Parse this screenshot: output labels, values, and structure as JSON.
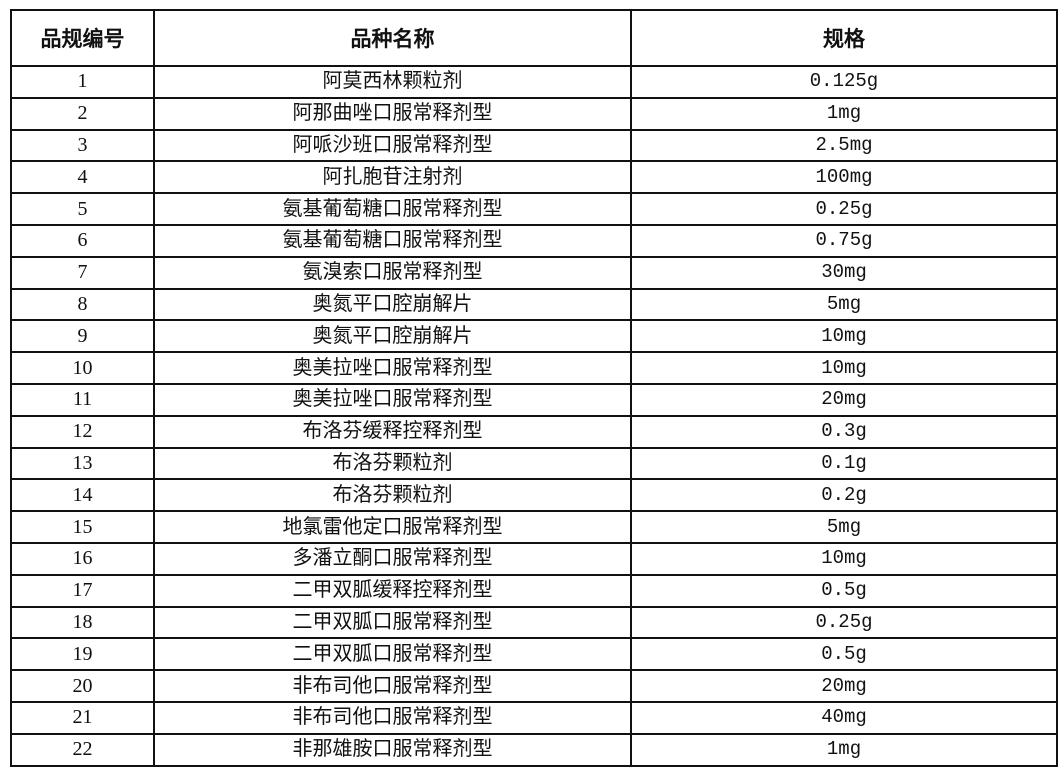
{
  "table": {
    "headers": [
      "品规编号",
      "品种名称",
      "规格"
    ],
    "rows": [
      [
        "1",
        "阿莫西林颗粒剂",
        "0.125g"
      ],
      [
        "2",
        "阿那曲唑口服常释剂型",
        "1mg"
      ],
      [
        "3",
        "阿哌沙班口服常释剂型",
        "2.5mg"
      ],
      [
        "4",
        "阿扎胞苷注射剂",
        "100mg"
      ],
      [
        "5",
        "氨基葡萄糖口服常释剂型",
        "0.25g"
      ],
      [
        "6",
        "氨基葡萄糖口服常释剂型",
        "0.75g"
      ],
      [
        "7",
        "氨溴索口服常释剂型",
        "30mg"
      ],
      [
        "8",
        "奥氮平口腔崩解片",
        "5mg"
      ],
      [
        "9",
        "奥氮平口腔崩解片",
        "10mg"
      ],
      [
        "10",
        "奥美拉唑口服常释剂型",
        "10mg"
      ],
      [
        "11",
        "奥美拉唑口服常释剂型",
        "20mg"
      ],
      [
        "12",
        "布洛芬缓释控释剂型",
        "0.3g"
      ],
      [
        "13",
        "布洛芬颗粒剂",
        "0.1g"
      ],
      [
        "14",
        "布洛芬颗粒剂",
        "0.2g"
      ],
      [
        "15",
        "地氯雷他定口服常释剂型",
        "5mg"
      ],
      [
        "16",
        "多潘立酮口服常释剂型",
        "10mg"
      ],
      [
        "17",
        "二甲双胍缓释控释剂型",
        "0.5g"
      ],
      [
        "18",
        "二甲双胍口服常释剂型",
        "0.25g"
      ],
      [
        "19",
        "二甲双胍口服常释剂型",
        "0.5g"
      ],
      [
        "20",
        "非布司他口服常释剂型",
        "20mg"
      ],
      [
        "21",
        "非布司他口服常释剂型",
        "40mg"
      ],
      [
        "22",
        "非那雄胺口服常释剂型",
        "1mg"
      ]
    ]
  }
}
